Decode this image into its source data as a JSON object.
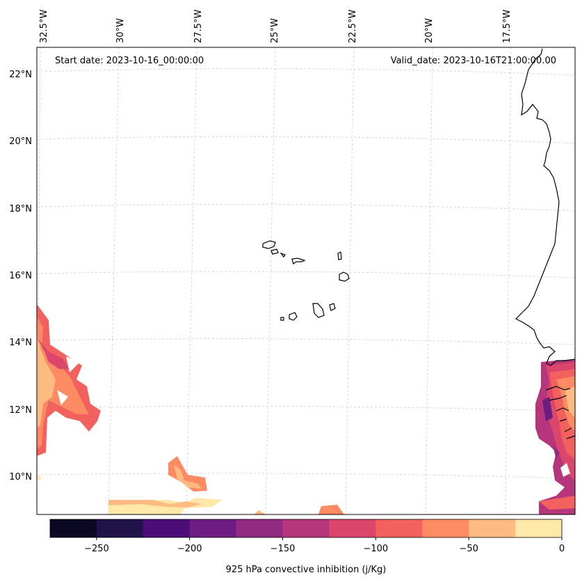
{
  "header": {
    "start_date": "Start date: 2023-10-16_00:00:00",
    "valid_date": "Valid_date: 2023-10-16T21:00:00.00"
  },
  "longitude_labels": [
    "32.5°W",
    "30°W",
    "27.5°W",
    "25°W",
    "22.5°W",
    "20°W",
    "17.5°W"
  ],
  "latitude_labels": [
    "22°N",
    "20°N",
    "18°N",
    "16°N",
    "14°N",
    "12°N",
    "10°N"
  ],
  "colorbar": {
    "label": "925 hPa convective inhibition (j/Kg)",
    "ticks": [
      "−250",
      "−200",
      "−150",
      "−100",
      "−50",
      "0"
    ],
    "colors": [
      "#0a0822",
      "#20134a",
      "#4b0e79",
      "#6d1d81",
      "#912b81",
      "#b5367a",
      "#db466c",
      "#f2615d",
      "#fc8a62",
      "#febb81",
      "#fde7a9"
    ]
  },
  "chart_data": {
    "type": "heatmap",
    "variable": "925 hPa convective inhibition",
    "units": "j/Kg",
    "value_range": [
      -275,
      0
    ],
    "level_boundaries": [
      -275,
      -250,
      -225,
      -200,
      -175,
      -150,
      -125,
      -100,
      -75,
      -50,
      -25,
      0
    ],
    "lon_range": [
      -33.2,
      -15.8
    ],
    "lat_range": [
      8.9,
      22.8
    ],
    "gridlines": true
  }
}
